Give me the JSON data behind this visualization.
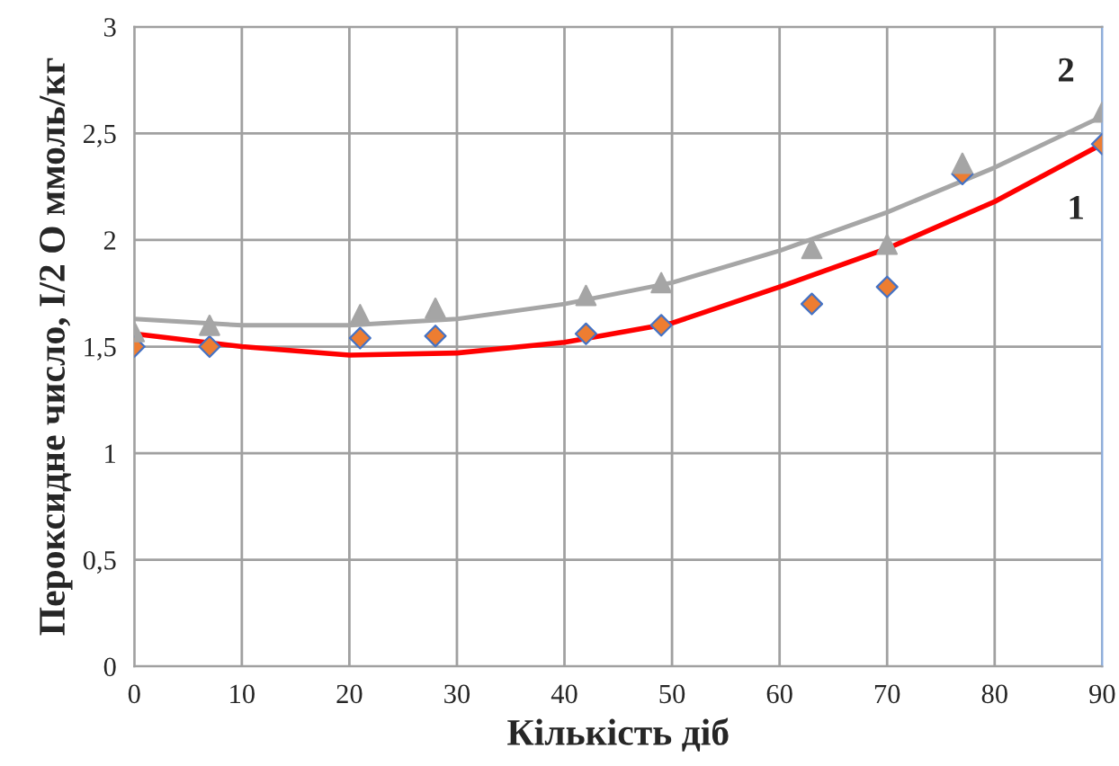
{
  "chart_data": {
    "type": "scatter",
    "xlabel": "Кількість діб",
    "ylabel": "Пероксидне число, I/2 O ммоль/кг",
    "xlim": [
      0,
      90
    ],
    "xticks": [
      0,
      10,
      20,
      30,
      40,
      50,
      60,
      70,
      80,
      90
    ],
    "ylim": [
      0,
      3
    ],
    "yticks": [
      0,
      {
        "value": 0.5,
        "label": "0,5"
      },
      1,
      {
        "value": 1.5,
        "label": "1,5"
      },
      2,
      {
        "value": 2.5,
        "label": "2,5"
      },
      3
    ],
    "grid": true,
    "legend": false,
    "series": [
      {
        "marker": "diamond",
        "color": "#ed7d31",
        "x": [
          0,
          7,
          21,
          28,
          42,
          49,
          63,
          70,
          77,
          90
        ],
        "values": [
          1.5,
          1.5,
          1.54,
          1.55,
          1.56,
          1.6,
          1.7,
          1.78,
          2.31,
          2.45
        ]
      },
      {
        "marker": "triangle",
        "color": "#a5a5a5",
        "x": [
          0,
          7,
          21,
          28,
          42,
          49,
          63,
          70,
          77,
          90
        ],
        "values": [
          1.57,
          1.6,
          1.65,
          1.68,
          1.74,
          1.8,
          1.96,
          1.98,
          2.36,
          2.6
        ]
      },
      {
        "type": "line",
        "name": "1",
        "color": "#ff0000",
        "x": [
          0,
          10,
          20,
          30,
          40,
          50,
          60,
          70,
          80,
          90
        ],
        "values": [
          1.56,
          1.5,
          1.46,
          1.47,
          1.52,
          1.61,
          1.78,
          1.96,
          2.18,
          2.45
        ]
      },
      {
        "type": "line",
        "name": "2",
        "color": "#a6a6a6",
        "x": [
          0,
          10,
          20,
          30,
          40,
          50,
          60,
          70,
          80,
          90
        ],
        "values": [
          1.63,
          1.6,
          1.6,
          1.63,
          1.7,
          1.8,
          1.95,
          2.13,
          2.34,
          2.58
        ]
      }
    ]
  }
}
